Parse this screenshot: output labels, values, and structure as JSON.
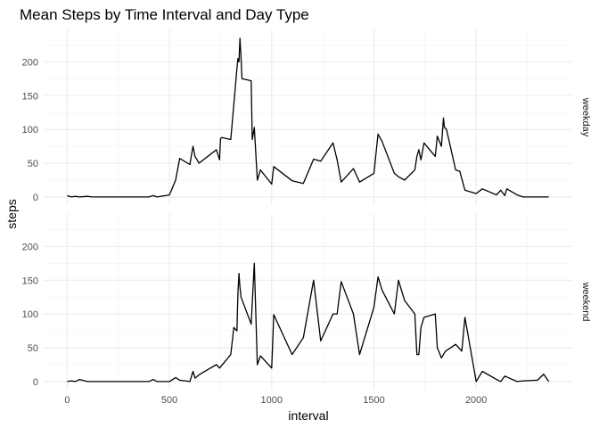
{
  "chart_data": {
    "type": "line",
    "title": "Mean Steps by Time Interval and Day Type",
    "xlabel": "interval",
    "ylabel": "steps",
    "xlim": [
      -115,
      2470
    ],
    "ylim": [
      -12,
      248
    ],
    "x_ticks": [
      0,
      500,
      1000,
      1500,
      2000
    ],
    "y_ticks": [
      0,
      50,
      100,
      150,
      200
    ],
    "grid": true,
    "facets": [
      {
        "label": "weekday",
        "x": [
          0,
          20,
          40,
          60,
          100,
          120,
          200,
          300,
          400,
          420,
          440,
          500,
          530,
          550,
          600,
          615,
          625,
          645,
          700,
          730,
          745,
          750,
          755,
          800,
          830,
          835,
          840,
          845,
          850,
          855,
          900,
          905,
          915,
          930,
          945,
          1000,
          1010,
          1100,
          1155,
          1205,
          1240,
          1300,
          1320,
          1340,
          1400,
          1430,
          1500,
          1520,
          1540,
          1600,
          1620,
          1650,
          1700,
          1710,
          1720,
          1730,
          1745,
          1800,
          1810,
          1830,
          1840,
          1845,
          1855,
          1900,
          1920,
          1945,
          2000,
          2030,
          2100,
          2120,
          2140,
          2150,
          2200,
          2230,
          2300,
          2320,
          2355
        ],
        "y": [
          2,
          0,
          1,
          0,
          1,
          0,
          0,
          0,
          0,
          2,
          0,
          3,
          25,
          57,
          48,
          75,
          60,
          50,
          63,
          70,
          55,
          86,
          88,
          85,
          190,
          205,
          200,
          235,
          207,
          175,
          172,
          85,
          103,
          25,
          40,
          19,
          45,
          24,
          20,
          56,
          53,
          80,
          55,
          22,
          42,
          22,
          35,
          93,
          82,
          35,
          30,
          25,
          40,
          60,
          70,
          55,
          80,
          60,
          90,
          75,
          117,
          103,
          100,
          40,
          38,
          10,
          5,
          12,
          3,
          10,
          2,
          12,
          3,
          0,
          0,
          0,
          0
        ]
      },
      {
        "label": "weekend",
        "x": [
          0,
          20,
          40,
          60,
          100,
          200,
          300,
          400,
          420,
          440,
          500,
          530,
          550,
          600,
          615,
          625,
          645,
          700,
          730,
          745,
          800,
          815,
          830,
          835,
          840,
          845,
          850,
          900,
          915,
          930,
          945,
          1000,
          1010,
          1100,
          1155,
          1205,
          1240,
          1300,
          1320,
          1340,
          1400,
          1430,
          1500,
          1520,
          1540,
          1600,
          1620,
          1650,
          1700,
          1710,
          1720,
          1730,
          1745,
          1800,
          1810,
          1830,
          1850,
          1900,
          1930,
          1945,
          2000,
          2030,
          2100,
          2120,
          2140,
          2200,
          2230,
          2300,
          2330,
          2355
        ],
        "y": [
          0,
          1,
          0,
          3,
          0,
          0,
          0,
          0,
          3,
          0,
          0,
          6,
          2,
          0,
          15,
          5,
          10,
          20,
          25,
          20,
          40,
          80,
          75,
          130,
          160,
          140,
          125,
          85,
          175,
          25,
          38,
          20,
          99,
          40,
          65,
          150,
          60,
          100,
          100,
          148,
          100,
          40,
          110,
          155,
          135,
          100,
          150,
          120,
          100,
          40,
          40,
          80,
          95,
          100,
          50,
          35,
          45,
          55,
          45,
          95,
          0,
          15,
          3,
          0,
          8,
          0,
          1,
          2,
          11,
          0
        ]
      }
    ]
  }
}
